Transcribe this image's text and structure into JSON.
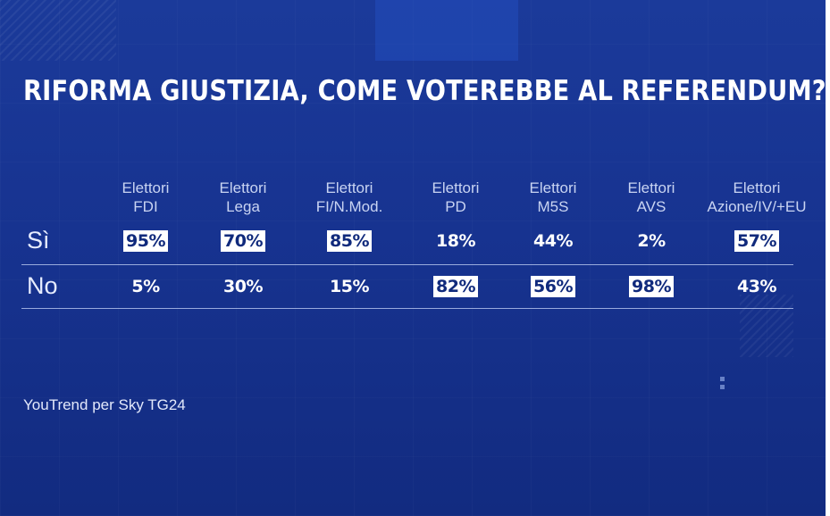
{
  "title": "RIFORMA GIUSTIZIA, COME VOTEREBBE AL REFERENDUM?",
  "source": "YouTrend per Sky TG24",
  "colors": {
    "background": "#173390",
    "text": "#ffffff",
    "highlight_fill": "#ffffff",
    "highlight_text": "#102a7c"
  },
  "chart_data": {
    "type": "table",
    "title": "RIFORMA GIUSTIZIA, COME VOTEREBBE AL REFERENDUM?",
    "columns": [
      {
        "line1": "Elettori",
        "line2": "FDI"
      },
      {
        "line1": "Elettori",
        "line2": "Lega"
      },
      {
        "line1": "Elettori",
        "line2": "FI/N.Mod."
      },
      {
        "line1": "Elettori",
        "line2": "PD"
      },
      {
        "line1": "Elettori",
        "line2": "M5S"
      },
      {
        "line1": "Elettori",
        "line2": "AVS"
      },
      {
        "line1": "Elettori",
        "line2": "Azione/IV/+EU"
      }
    ],
    "series": [
      {
        "name": "Sì",
        "values": [
          95,
          70,
          85,
          18,
          44,
          2,
          57
        ],
        "labels": [
          "95%",
          "70%",
          "85%",
          "18%",
          "44%",
          "2%",
          "57%"
        ]
      },
      {
        "name": "No",
        "values": [
          5,
          30,
          15,
          82,
          56,
          98,
          43
        ],
        "labels": [
          "5%",
          "30%",
          "15%",
          "82%",
          "56%",
          "98%",
          "43%"
        ]
      }
    ]
  }
}
